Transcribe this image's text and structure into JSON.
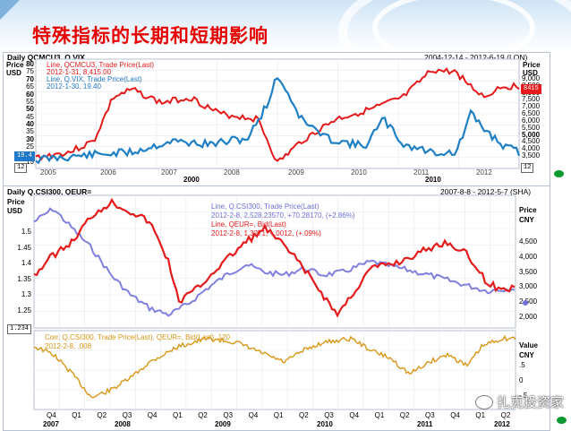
{
  "slide": {
    "title": "特殊指标的长期和短期影响"
  },
  "top_chart": {
    "header_left": "Daily QCMCU3, Q.VIX",
    "header_right": "2004-12-14 - 2012-6-19 (LON)",
    "left_axis_title": [
      "Price",
      "USD"
    ],
    "right_axis_title": [
      "Price",
      "USD"
    ],
    "legend": [
      {
        "text": "Line, QCMCU3, Trade Price(Last)",
        "color": "#e51a1a"
      },
      {
        "text": "2012-1-31, 8,415.00",
        "color": "#e51a1a"
      },
      {
        "text": "Line, Q.VIX, Trade Price(Last)",
        "color": "#2178c6"
      },
      {
        "text": "2012-1-30, 19.40",
        "color": "#2178c6"
      }
    ],
    "left_ticks": [
      "80",
      "75",
      "70",
      "65",
      "60",
      "55",
      "50",
      "45",
      "40",
      "35",
      "30",
      "25",
      "20",
      "15"
    ],
    "right_ticks": [
      "9,000",
      "8,500",
      "8,000",
      "7,500",
      "7,000",
      "6,500",
      "6,000",
      "5,500",
      "5,000",
      "4,500",
      "4,000",
      "3,500"
    ],
    "tag_left": "19.4",
    "tag_right": "8415",
    "tag_bottom_left": "12",
    "tag_bottom_right": "12",
    "x_labels": [
      "2005",
      "2006",
      "2007",
      "2008",
      "2009",
      "2010",
      "2011",
      "2012"
    ],
    "x_bold": [
      "2000",
      "2010"
    ]
  },
  "bottom_chart": {
    "header_left": "Daily Q.CSI300, QEUR=",
    "header_right": "2007-8-8 - 2012-5-7 (SHA)",
    "left_axis_title": [
      "Price",
      "USD"
    ],
    "right_axis_title": [
      "Price",
      "CNY"
    ],
    "legend": [
      {
        "text": "Line, Q.CSI300, Trade Price(Last)",
        "color": "#6e6ed6"
      },
      {
        "text": "2012-2-8, 2,528.23570, +70.28170, (+2.86%)",
        "color": "#6e6ed6"
      },
      {
        "text": "Line, QEUR=, Bid(Last)",
        "color": "#e51a1a"
      },
      {
        "text": "2012-2-8, 1.3271, +.0012, (+.09%)",
        "color": "#e51a1a"
      }
    ],
    "left_ticks": [
      "1.5",
      "1.45",
      "1.4",
      "1.35",
      "1.3",
      "1.25"
    ],
    "right_ticks": [
      "4,500",
      "4,000",
      "3,500",
      "3,000",
      "2,500",
      "2,000"
    ],
    "tag_left": "1.234",
    "corr_legend": [
      {
        "text": "Corr, Q.CSI300, Trade Price(Last), QEUR=, Bid(Last), 120",
        "color": "#d89616"
      },
      {
        "text": "2012-2-8, .008",
        "color": "#d89616"
      }
    ],
    "corr_axis_title": [
      "Value",
      "CNY"
    ],
    "corr_ticks": [
      ".5",
      "0",
      "-.5"
    ],
    "quarters": [
      "Q4",
      "Q1",
      "Q2",
      "Q3",
      "Q4",
      "Q1",
      "Q2",
      "Q3",
      "Q4",
      "Q1",
      "Q2",
      "Q3",
      "Q4",
      "Q1",
      "Q2",
      "Q3",
      "Q4",
      "Q1",
      "Q2"
    ],
    "years": [
      "2007",
      "2008",
      "2009",
      "2010",
      "2011",
      "2012"
    ]
  },
  "watermark": {
    "text": "扎克投资家"
  },
  "colors": {
    "red": "#e51a1a",
    "blue": "#2178c6",
    "purple": "#7b7bdc",
    "orange": "#d89616",
    "green": "#0a9a2e"
  }
}
